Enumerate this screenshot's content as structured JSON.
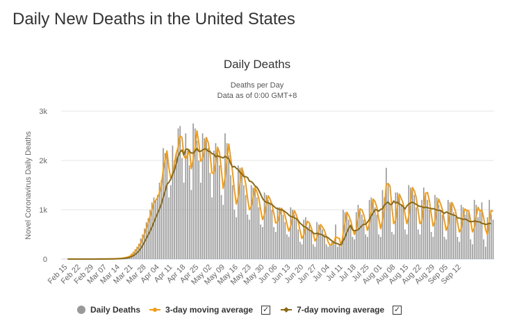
{
  "page": {
    "title": "Daily New Deaths in the United States"
  },
  "chart_data": {
    "type": "bar",
    "title": "Daily Deaths",
    "subtitle_lines": [
      "Deaths per Day",
      "Data as of 0:00 GMT+8"
    ],
    "ylabel": "Novel Coronavirus Daily Deaths",
    "xlabel": "",
    "ylim": [
      0,
      3000
    ],
    "yticks": [
      0,
      1000,
      2000,
      3000
    ],
    "ytick_labels": [
      "0",
      "1k",
      "2k",
      "3k"
    ],
    "grid": true,
    "legend_placement": "bottom",
    "start_date": "2020-02-15",
    "xtick_labels": [
      "Feb 15",
      "Feb 22",
      "Feb 29",
      "Mar 07",
      "Mar 14",
      "Mar 21",
      "Mar 28",
      "Apr 04",
      "Apr 11",
      "Apr 18",
      "Apr 25",
      "May 02",
      "May 09",
      "May 16",
      "May 23",
      "May 30",
      "Jun 06",
      "Jun 13",
      "Jun 20",
      "Jun 27",
      "Jul 04",
      "Jul 11",
      "Jul 18",
      "Jul 25",
      "Aug 01",
      "Aug 08",
      "Aug 15",
      "Aug 22",
      "Aug 29",
      "Sep 05",
      "Sep 12"
    ],
    "colors": {
      "bars": "#999999",
      "ma3": "#f39c12",
      "ma7": "#8b6914"
    },
    "series": [
      {
        "name": "Daily Deaths",
        "type": "bar",
        "values": [
          0,
          0,
          0,
          0,
          0,
          0,
          0,
          0,
          0,
          0,
          0,
          0,
          0,
          0,
          1,
          1,
          0,
          2,
          1,
          1,
          3,
          4,
          4,
          3,
          6,
          8,
          10,
          12,
          15,
          20,
          30,
          40,
          50,
          70,
          110,
          150,
          200,
          250,
          310,
          420,
          500,
          620,
          750,
          830,
          1000,
          1150,
          1250,
          1180,
          1300,
          1550,
          1600,
          2250,
          2150,
          2180,
          1250,
          1500,
          2300,
          2000,
          2150,
          2650,
          2700,
          2050,
          1550,
          2550,
          2200,
          1900,
          1400,
          2750,
          2650,
          2400,
          2000,
          1550,
          2550,
          2450,
          2400,
          2250,
          1750,
          1250,
          2200,
          2350,
          2250,
          1900,
          1300,
          1100,
          2550,
          2350,
          2100,
          1700,
          1500,
          1000,
          850,
          1900,
          1850,
          1800,
          1500,
          1300,
          900,
          800,
          1500,
          1450,
          1400,
          1250,
          1050,
          700,
          650,
          1350,
          1300,
          1200,
          1150,
          1000,
          650,
          550,
          1050,
          1050,
          1000,
          900,
          750,
          500,
          450,
          1050,
          1000,
          900,
          800,
          600,
          350,
          300,
          800,
          850,
          650,
          700,
          550,
          300,
          250,
          750,
          700,
          650,
          600,
          500,
          300,
          250,
          300,
          350,
          300,
          700,
          250,
          300,
          250,
          1000,
          950,
          900,
          800,
          650,
          450,
          400,
          950,
          1100,
          1000,
          900,
          800,
          500,
          450,
          1200,
          1250,
          1200,
          1050,
          900,
          500,
          450,
          1400,
          1250,
          1850,
          1500,
          1100,
          550,
          500,
          1350,
          1350,
          1250,
          1100,
          1050,
          600,
          500,
          1500,
          1450,
          1400,
          1300,
          1050,
          600,
          500,
          1200,
          1450,
          1350,
          1200,
          1000,
          550,
          450,
          1300,
          1250,
          1100,
          1000,
          900,
          450,
          400,
          1200,
          1150,
          1100,
          950,
          850,
          450,
          350,
          1100,
          1050,
          900,
          1000,
          950,
          400,
          300,
          1200,
          1100,
          850,
          950,
          1150,
          400,
          250,
          850,
          1200,
          900,
          800
        ]
      },
      {
        "name": "3-day moving average",
        "type": "line",
        "values": [
          0,
          0,
          0,
          0,
          0,
          0,
          0,
          0,
          0,
          0,
          0,
          0,
          0,
          0,
          0,
          1,
          1,
          1,
          1,
          1,
          2,
          3,
          4,
          4,
          4,
          6,
          8,
          10,
          12,
          16,
          22,
          30,
          40,
          53,
          77,
          110,
          153,
          200,
          253,
          327,
          410,
          513,
          623,
          733,
          860,
          993,
          1133,
          1193,
          1243,
          1343,
          1483,
          1800,
          2000,
          2193,
          1860,
          1643,
          1683,
          1933,
          2150,
          2267,
          2500,
          2467,
          2100,
          2033,
          2100,
          2217,
          1833,
          2017,
          2267,
          2600,
          2350,
          1983,
          2033,
          2183,
          2467,
          2367,
          2133,
          1750,
          1733,
          1933,
          2267,
          2167,
          1817,
          1433,
          1650,
          2000,
          2333,
          2050,
          1767,
          1400,
          1117,
          1250,
          1550,
          1850,
          1717,
          1533,
          1233,
          1000,
          1067,
          1250,
          1450,
          1367,
          1233,
          1000,
          800,
          900,
          1100,
          1283,
          1217,
          1117,
          933,
          733,
          750,
          883,
          1033,
          983,
          883,
          717,
          567,
          667,
          833,
          983,
          900,
          767,
          583,
          417,
          483,
          650,
          767,
          733,
          633,
          517,
          367,
          433,
          567,
          700,
          650,
          583,
          467,
          350,
          283,
          300,
          317,
          450,
          433,
          417,
          267,
          517,
          733,
          950,
          883,
          783,
          633,
          500,
          600,
          817,
          1017,
          1000,
          900,
          733,
          583,
          717,
          967,
          1217,
          1167,
          1050,
          817,
          617,
          783,
          1017,
          1500,
          1533,
          1483,
          1050,
          717,
          783,
          1067,
          1317,
          1233,
          1133,
          917,
          717,
          867,
          1150,
          1450,
          1383,
          1250,
          983,
          717,
          767,
          1050,
          1333,
          1350,
          1183,
          917,
          667,
          767,
          1000,
          1217,
          1117,
          1000,
          783,
          583,
          683,
          917,
          1150,
          1067,
          967,
          750,
          550,
          617,
          833,
          1017,
          983,
          983,
          783,
          550,
          633,
          867,
          1050,
          967,
          1000,
          833,
          600,
          500,
          767,
          983,
          967
        ]
      },
      {
        "name": "7-day moving average",
        "type": "line",
        "values": [
          0,
          0,
          0,
          0,
          0,
          0,
          0,
          0,
          0,
          0,
          0,
          0,
          0,
          0,
          0,
          0,
          0,
          1,
          1,
          1,
          1,
          2,
          2,
          3,
          3,
          4,
          5,
          7,
          9,
          11,
          14,
          19,
          25,
          33,
          48,
          67,
          93,
          124,
          163,
          216,
          276,
          345,
          419,
          493,
          568,
          650,
          744,
          839,
          928,
          1018,
          1118,
          1254,
          1374,
          1513,
          1555,
          1619,
          1727,
          1803,
          1937,
          2090,
          2171,
          2211,
          2111,
          2221,
          2233,
          2186,
          2150,
          2150,
          2188,
          2247,
          2185,
          2187,
          2210,
          2235,
          2229,
          2186,
          2181,
          2136,
          2131,
          2071,
          2096,
          2075,
          2066,
          2050,
          2086,
          2054,
          2036,
          1934,
          1868,
          1880,
          1841,
          1813,
          1754,
          1729,
          1673,
          1671,
          1653,
          1581,
          1571,
          1536,
          1481,
          1457,
          1393,
          1314,
          1229,
          1179,
          1150,
          1143,
          1121,
          1107,
          1071,
          1036,
          1021,
          1007,
          1002,
          986,
          960,
          933,
          894,
          864,
          857,
          836,
          822,
          783,
          729,
          697,
          659,
          653,
          612,
          587,
          568,
          529,
          512,
          524,
          511,
          504,
          488,
          456,
          451,
          434,
          397,
          371,
          336,
          320,
          314,
          294,
          293,
          373,
          440,
          544,
          628,
          686,
          593,
          574,
          580,
          597,
          633,
          678,
          706,
          706,
          749,
          805,
          874,
          938,
          1001,
          996,
          971,
          1009,
          1016,
          1096,
          1129,
          1159,
          1108,
          1109,
          1178,
          1136,
          1154,
          1118,
          1100,
          1064,
          1016,
          1078,
          1116,
          1140,
          1156,
          1131,
          1108,
          1084,
          1067,
          1066,
          1039,
          1053,
          1043,
          1032,
          1022,
          1023,
          1013,
          992,
          989,
          987,
          953,
          926,
          957,
          936,
          921,
          905,
          890,
          879,
          837,
          830,
          819,
          805,
          812,
          798,
          771,
          756,
          762,
          767,
          767,
          755,
          754,
          724,
          716,
          704,
          709,
          727,
          714
        ]
      }
    ]
  },
  "legend": {
    "bars_label": "Daily Deaths",
    "ma3_label": "3-day moving average",
    "ma7_label": "7-day moving average",
    "check_mark": "✓"
  }
}
